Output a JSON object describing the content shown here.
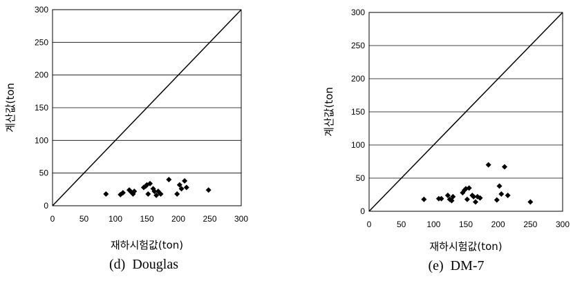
{
  "chart_data": [
    {
      "type": "scatter",
      "caption": "(d)  Douglas",
      "xlabel": "재하시험값(ton)",
      "ylabel": "계산값(ton",
      "xlim": [
        0,
        300
      ],
      "ylim": [
        0,
        300
      ],
      "xticks": [
        "0",
        "50",
        "100",
        "150",
        "200",
        "250",
        "300"
      ],
      "yticks": [
        "0",
        "50",
        "100",
        "150",
        "200",
        "250",
        "300"
      ],
      "grid": "horizontal",
      "reference_line": "y = x",
      "points": [
        {
          "x": 85,
          "y": 18
        },
        {
          "x": 108,
          "y": 17
        },
        {
          "x": 112,
          "y": 20
        },
        {
          "x": 122,
          "y": 24
        },
        {
          "x": 125,
          "y": 21
        },
        {
          "x": 128,
          "y": 18
        },
        {
          "x": 130,
          "y": 22
        },
        {
          "x": 145,
          "y": 28
        },
        {
          "x": 148,
          "y": 30
        },
        {
          "x": 150,
          "y": 32
        },
        {
          "x": 152,
          "y": 18
        },
        {
          "x": 155,
          "y": 34
        },
        {
          "x": 160,
          "y": 26
        },
        {
          "x": 162,
          "y": 22
        },
        {
          "x": 165,
          "y": 16
        },
        {
          "x": 168,
          "y": 22
        },
        {
          "x": 172,
          "y": 18
        },
        {
          "x": 185,
          "y": 40
        },
        {
          "x": 198,
          "y": 18
        },
        {
          "x": 202,
          "y": 32
        },
        {
          "x": 205,
          "y": 26
        },
        {
          "x": 210,
          "y": 38
        },
        {
          "x": 213,
          "y": 28
        },
        {
          "x": 248,
          "y": 24
        }
      ]
    },
    {
      "type": "scatter",
      "caption": "(e)  DM-7",
      "xlabel": "재하시험값(ton)",
      "ylabel": "계산값(ton",
      "xlim": [
        0,
        300
      ],
      "ylim": [
        0,
        300
      ],
      "xticks": [
        "0",
        "50",
        "100",
        "150",
        "200",
        "250",
        "300"
      ],
      "yticks": [
        "0",
        "50",
        "100",
        "150",
        "200",
        "250",
        "300"
      ],
      "grid": "horizontal",
      "reference_line": "y = x",
      "points": [
        {
          "x": 85,
          "y": 18
        },
        {
          "x": 108,
          "y": 19
        },
        {
          "x": 112,
          "y": 19
        },
        {
          "x": 122,
          "y": 24
        },
        {
          "x": 125,
          "y": 18
        },
        {
          "x": 128,
          "y": 16
        },
        {
          "x": 130,
          "y": 22
        },
        {
          "x": 145,
          "y": 28
        },
        {
          "x": 148,
          "y": 32
        },
        {
          "x": 150,
          "y": 34
        },
        {
          "x": 152,
          "y": 18
        },
        {
          "x": 155,
          "y": 35
        },
        {
          "x": 160,
          "y": 24
        },
        {
          "x": 162,
          "y": 22
        },
        {
          "x": 165,
          "y": 14
        },
        {
          "x": 168,
          "y": 22
        },
        {
          "x": 172,
          "y": 20
        },
        {
          "x": 185,
          "y": 70
        },
        {
          "x": 198,
          "y": 17
        },
        {
          "x": 202,
          "y": 38
        },
        {
          "x": 205,
          "y": 26
        },
        {
          "x": 210,
          "y": 67
        },
        {
          "x": 215,
          "y": 24
        },
        {
          "x": 250,
          "y": 14
        }
      ]
    }
  ]
}
